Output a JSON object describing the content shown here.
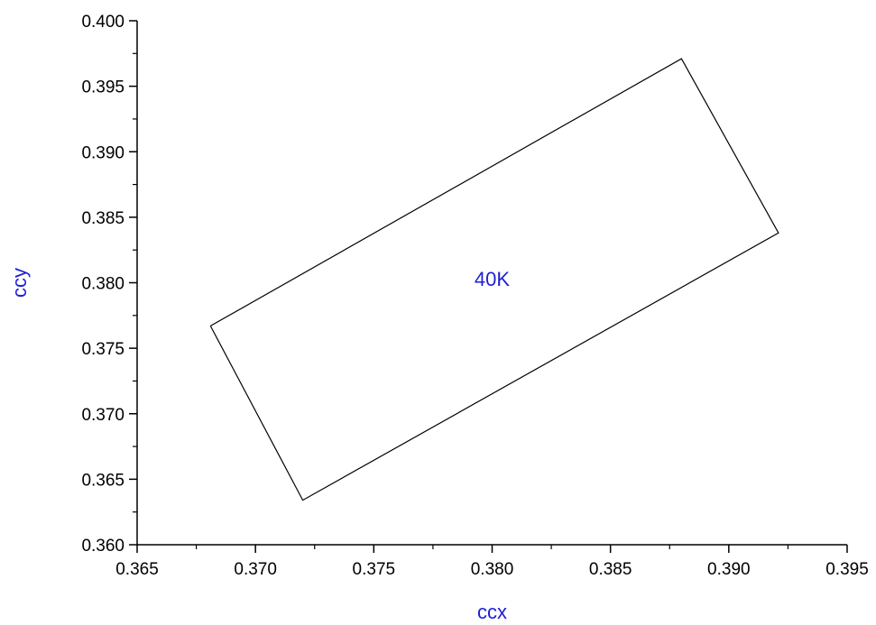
{
  "chart_data": {
    "type": "line",
    "xlabel": "ccx",
    "ylabel": "ccy",
    "xlim": [
      0.365,
      0.395
    ],
    "ylim": [
      0.36,
      0.4
    ],
    "x_ticks": [
      "0.365",
      "0.370",
      "0.375",
      "0.380",
      "0.385",
      "0.390",
      "0.395"
    ],
    "y_ticks": [
      "0.360",
      "0.365",
      "0.370",
      "0.375",
      "0.380",
      "0.385",
      "0.390",
      "0.395",
      "0.400"
    ],
    "grid": false,
    "series": [
      {
        "points": [
          {
            "x": 0.3681,
            "y": 0.3767
          },
          {
            "x": 0.388,
            "y": 0.3971
          },
          {
            "x": 0.3921,
            "y": 0.3838
          },
          {
            "x": 0.372,
            "y": 0.3634
          },
          {
            "x": 0.3681,
            "y": 0.3767
          }
        ],
        "color": "#000000"
      }
    ],
    "annotations": [
      {
        "text": "40K",
        "x": 0.38,
        "y": 0.3803,
        "color": "#1f1fd6"
      }
    ],
    "axis_title_color": "#1f1fd6"
  }
}
